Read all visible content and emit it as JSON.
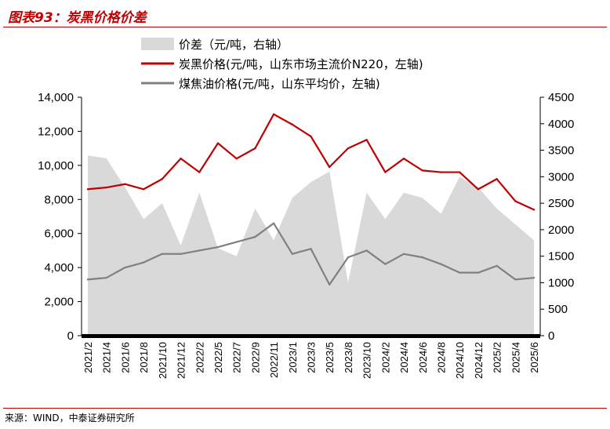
{
  "header": {
    "title": "图表93：炭黑价格价差"
  },
  "footer": {
    "source": "来源：WIND，中泰证券研究所"
  },
  "chart_data": {
    "type": "line",
    "title": "图表93：炭黑价格价差",
    "x": [
      "2021/2",
      "2021/4",
      "2021/6",
      "2021/8",
      "2021/10",
      "2021/12",
      "2022/2",
      "2022/5",
      "2022/7",
      "2022/9",
      "2022/11",
      "2023/1",
      "2023/3",
      "2023/5",
      "2023/8",
      "2023/10",
      "2024/2",
      "2024/4",
      "2024/6",
      "2024/8",
      "2024/10",
      "2024/12",
      "2025/2",
      "2025/4",
      "2025/6"
    ],
    "y_left": {
      "ticks": [
        "0",
        "2,000",
        "4,000",
        "6,000",
        "8,000",
        "10,000",
        "12,000",
        "14,000"
      ],
      "range": [
        0,
        14000
      ]
    },
    "y_right": {
      "ticks": [
        "0",
        "500",
        "1000",
        "1500",
        "2000",
        "2500",
        "3000",
        "3500",
        "4000",
        "4500"
      ],
      "range": [
        0,
        4500
      ]
    },
    "legend_position": "top",
    "series": [
      {
        "name": "价差（元/吨，右轴）",
        "type": "area",
        "axis": "right",
        "color": "#d9d9d9",
        "values": [
          3400,
          3350,
          2800,
          2200,
          2500,
          1700,
          2700,
          1650,
          1500,
          2400,
          1800,
          2600,
          2900,
          3100,
          1000,
          2700,
          2200,
          2700,
          2600,
          2300,
          3000,
          2800,
          2400,
          2100,
          1800
        ]
      },
      {
        "name": "炭黑价格(元/吨，山东市场主流价N220，左轴)",
        "type": "line",
        "axis": "left",
        "color": "#c00000",
        "values": [
          8600,
          8700,
          8900,
          8600,
          9200,
          10400,
          9600,
          11300,
          10400,
          11000,
          13000,
          12400,
          11700,
          9900,
          11000,
          11500,
          9600,
          10400,
          9700,
          9600,
          9600,
          8600,
          9200,
          7900,
          7400
        ]
      },
      {
        "name": "煤焦油价格(元/吨，山东平均价，左轴)",
        "type": "line",
        "axis": "left",
        "color": "#808080",
        "values": [
          3300,
          3400,
          4000,
          4300,
          4800,
          4800,
          5000,
          5200,
          5500,
          5800,
          6600,
          4800,
          5100,
          3000,
          4600,
          5000,
          4200,
          4800,
          4600,
          4200,
          3700,
          3700,
          4100,
          3300,
          3400
        ]
      }
    ]
  }
}
